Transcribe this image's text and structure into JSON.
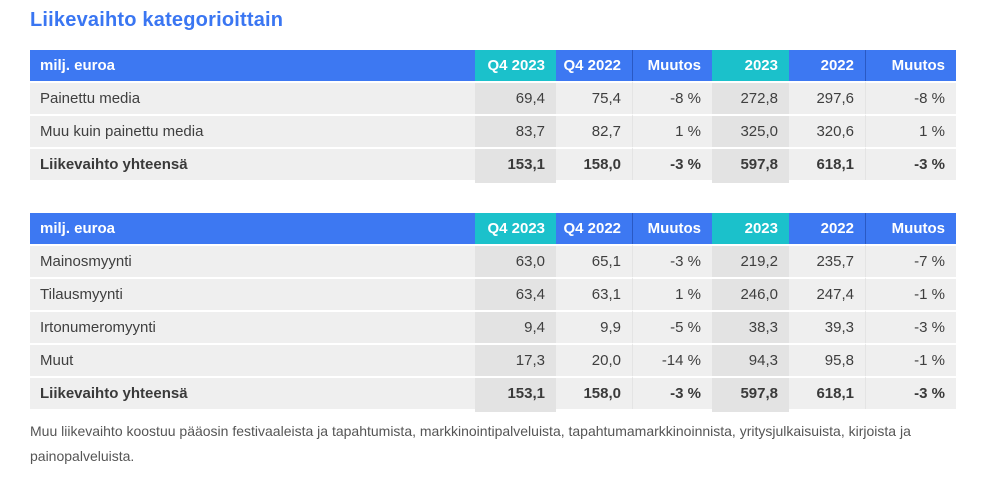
{
  "page": {
    "title": "Liikevaihto kategorioittain",
    "footnote": "Muu liikevaihto koostuu pääosin festivaaleista ja tapahtumista, markkinointipalveluista, tapahtumamarkkinoinnista, yritysjulkaisuista, kirjoista ja painopalveluista."
  },
  "colors": {
    "title_blue": "#3a76f2",
    "header_blue": "#3d78f2",
    "header_teal": "#1bc1cb",
    "row_bg": "#efefef",
    "highlight_column_bg": "#e3e3e3",
    "body_text": "#3f3f3f",
    "footnote_text": "#555555"
  },
  "tables": [
    {
      "header": [
        "milj. euroa",
        "Q4 2023",
        "Q4 2022",
        "Muutos",
        "2023",
        "2022",
        "Muutos"
      ],
      "rows": [
        {
          "label": "Painettu media",
          "values": [
            "69,4",
            "75,4",
            "-8 %",
            "272,8",
            "297,6",
            "-8 %"
          ]
        },
        {
          "label": "Muu kuin painettu media",
          "values": [
            "83,7",
            "82,7",
            "1 %",
            "325,0",
            "320,6",
            "1 %"
          ]
        },
        {
          "label": "Liikevaihto yhteensä",
          "values": [
            "153,1",
            "158,0",
            "-3 %",
            "597,8",
            "618,1",
            "-3 %"
          ]
        }
      ]
    },
    {
      "header": [
        "milj. euroa",
        "Q4 2023",
        "Q4 2022",
        "Muutos",
        "2023",
        "2022",
        "Muutos"
      ],
      "rows": [
        {
          "label": "Mainosmyynti",
          "values": [
            "63,0",
            "65,1",
            "-3 %",
            "219,2",
            "235,7",
            "-7 %"
          ]
        },
        {
          "label": "Tilausmyynti",
          "values": [
            "63,4",
            "63,1",
            "1 %",
            "246,0",
            "247,4",
            "-1 %"
          ]
        },
        {
          "label": "Irtonumeromyynti",
          "values": [
            "9,4",
            "9,9",
            "-5 %",
            "38,3",
            "39,3",
            "-3 %"
          ]
        },
        {
          "label": "Muut",
          "values": [
            "17,3",
            "20,0",
            "-14 %",
            "94,3",
            "95,8",
            "-1 %"
          ]
        },
        {
          "label": "Liikevaihto yhteensä",
          "values": [
            "153,1",
            "158,0",
            "-3 %",
            "597,8",
            "618,1",
            "-3 %"
          ]
        }
      ]
    }
  ]
}
